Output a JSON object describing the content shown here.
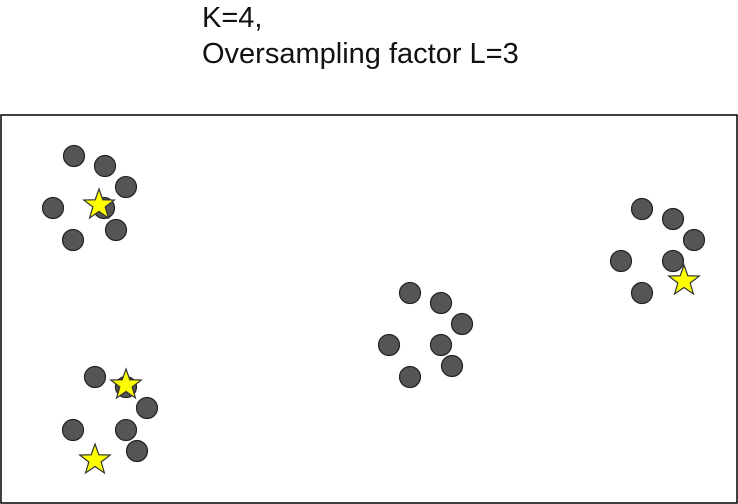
{
  "caption": {
    "line1": "K=4,",
    "line2": "Oversampling factor L=3"
  },
  "colors": {
    "point_fill": "#555555",
    "point_stroke": "#222222",
    "star_fill": "#ffff00",
    "star_stroke": "#333333",
    "frame_stroke": "#000000"
  },
  "clusters": [
    {
      "name": "top-left",
      "point_count": 7,
      "star_count": 1
    },
    {
      "name": "bottom-left",
      "point_count": 6,
      "star_count": 2
    },
    {
      "name": "middle",
      "point_count": 7,
      "star_count": 0
    },
    {
      "name": "right",
      "point_count": 7,
      "star_count": 1
    }
  ]
}
